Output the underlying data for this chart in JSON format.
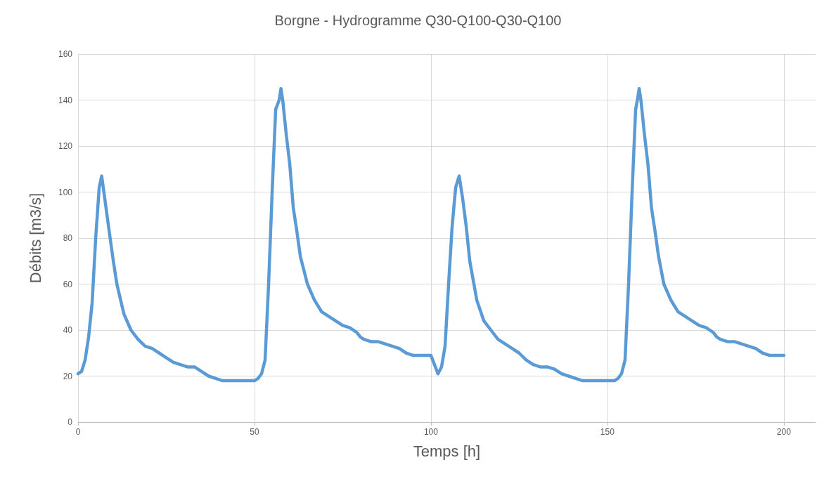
{
  "chart_data": {
    "type": "line",
    "title": "Borgne - Hydrogramme Q30-Q100-Q30-Q100",
    "xlabel": "Temps [h]",
    "ylabel": "Débits [m3/s]",
    "x": [
      0,
      1,
      2,
      3,
      4,
      5,
      6,
      6.7,
      7.5,
      9,
      10,
      11,
      13,
      15,
      17,
      19,
      21,
      23,
      25,
      27,
      29,
      31,
      33,
      35,
      37,
      39,
      41,
      50,
      51,
      52,
      53,
      54,
      55,
      56,
      57,
      57.5,
      58,
      59,
      60,
      61,
      62,
      63,
      65,
      67,
      69,
      71,
      73,
      75,
      77,
      79,
      80,
      81,
      83,
      85,
      87,
      89,
      91,
      93,
      95,
      100,
      102,
      103,
      104,
      105,
      106,
      107,
      108,
      109,
      110,
      111,
      113,
      115,
      117,
      119,
      121,
      123,
      125,
      127,
      129,
      131,
      133,
      135,
      137,
      139,
      141,
      143,
      152,
      153,
      154,
      155,
      156,
      157,
      158,
      158.5,
      159,
      159.5,
      160.5,
      161.5,
      162.5,
      163.5,
      164.5,
      166,
      168,
      170,
      172,
      174,
      176,
      178,
      180,
      181,
      182,
      184,
      186,
      188,
      190,
      192,
      194,
      196,
      200
    ],
    "series": [
      {
        "color": "#5b9bd5",
        "values": [
          21,
          22,
          27,
          37,
          52,
          80,
          102,
          107,
          98,
          81,
          70,
          60,
          47,
          40,
          36,
          33,
          32,
          30,
          28,
          26,
          25,
          24,
          24,
          22,
          20,
          19,
          18,
          18,
          19,
          21,
          27,
          60,
          100,
          136,
          140,
          145,
          140,
          125,
          112,
          93,
          83,
          72,
          60,
          53,
          48,
          46,
          44,
          42,
          41,
          39,
          37,
          36,
          35,
          35,
          34,
          33,
          32,
          30,
          29,
          29,
          21,
          24,
          33,
          60,
          85,
          102,
          107,
          97,
          85,
          70,
          53,
          44,
          40,
          36,
          34,
          32,
          30,
          27,
          25,
          24,
          24,
          23,
          21,
          20,
          19,
          18,
          18,
          19,
          21,
          27,
          60,
          100,
          136,
          140,
          145,
          140,
          125,
          112,
          93,
          83,
          72,
          60,
          53,
          48,
          46,
          44,
          42,
          41,
          39,
          37,
          36,
          35,
          35,
          34,
          33,
          32,
          30,
          29,
          29
        ]
      }
    ],
    "xlim": [
      0,
      209
    ],
    "xticks": [
      0,
      50,
      100,
      150,
      200
    ],
    "ylim": [
      0,
      160
    ],
    "yticks": [
      0,
      20,
      40,
      60,
      80,
      100,
      120,
      140,
      160
    ],
    "grid": true,
    "marker": "none",
    "line_style": "solid"
  }
}
